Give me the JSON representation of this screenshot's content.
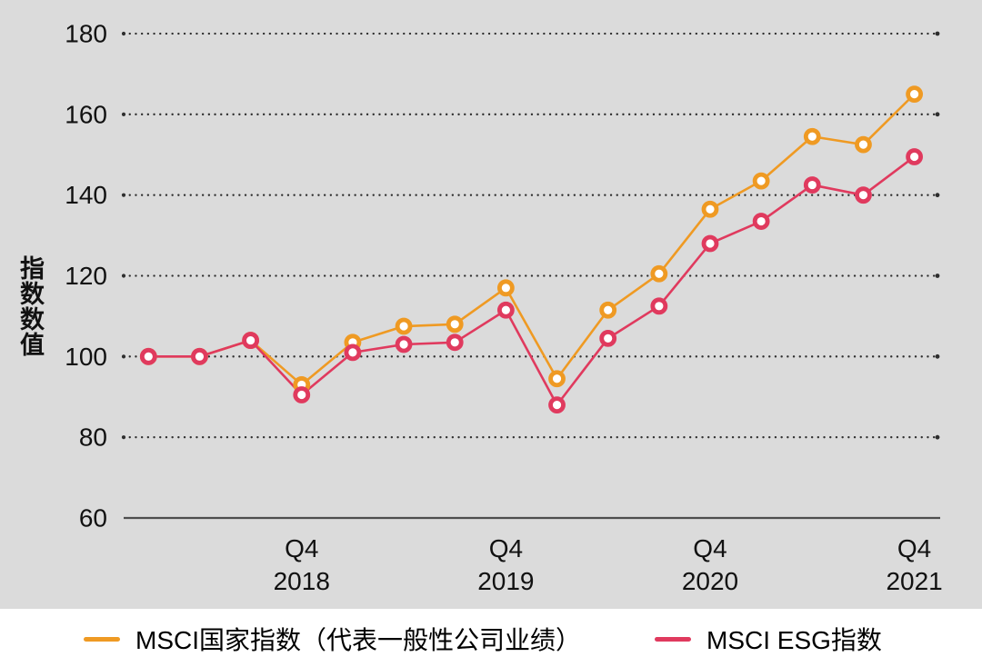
{
  "chart_data": {
    "type": "line",
    "title": "",
    "ylabel": "指数数值",
    "yticks": [
      60,
      80,
      100,
      120,
      140,
      160,
      180
    ],
    "ylim": [
      60,
      185
    ],
    "grid": "dotted-horizontal",
    "legend_position": "bottom",
    "x_count": 16,
    "x_ticks": [
      {
        "index": 3,
        "line1": "Q4",
        "line2": "2018"
      },
      {
        "index": 7,
        "line1": "Q4",
        "line2": "2019"
      },
      {
        "index": 11,
        "line1": "Q4",
        "line2": "2020"
      },
      {
        "index": 15,
        "line1": "Q4",
        "line2": "2021"
      }
    ],
    "series": [
      {
        "name": "MSCI国家指数（代表一般性公司业绩）",
        "color": "#EF9A23",
        "values": [
          100,
          100,
          104,
          93,
          103.5,
          107.5,
          108,
          117,
          94.5,
          111.5,
          120.5,
          136.5,
          143.5,
          154.5,
          152.5,
          165
        ]
      },
      {
        "name": "MSCI ESG指数",
        "color": "#E03A5E",
        "values": [
          100,
          100,
          104,
          90.5,
          101,
          103,
          103.5,
          111.5,
          88,
          104.5,
          112.5,
          128,
          133.5,
          142.5,
          140,
          149.5
        ]
      }
    ]
  },
  "colors": {
    "panel_background": "#DBDBDB",
    "page_background": "#FFFFFF",
    "gridline": "#2E2E2E",
    "axis_line": "#4D4D4D",
    "tick_text": "#111111",
    "marker_fill": "#FFFFFF"
  }
}
